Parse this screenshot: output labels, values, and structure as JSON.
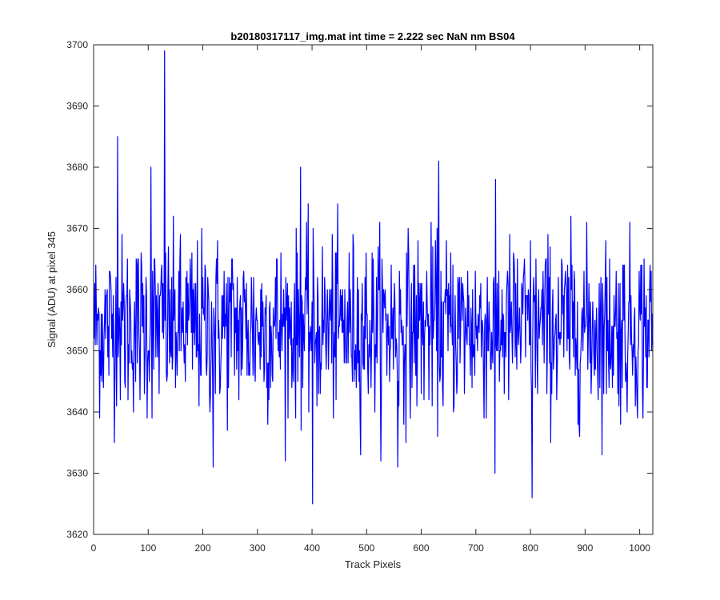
{
  "chart_data": {
    "type": "line",
    "title": "b20180317117_img.mat int time = 2.222 sec  NaN nm BS04",
    "xlabel": "Track Pixels",
    "ylabel": "Signal (ADU) at pixel 345",
    "xlim": [
      0,
      1024
    ],
    "ylim": [
      3620,
      3700
    ],
    "xticks": [
      0,
      100,
      200,
      300,
      400,
      500,
      600,
      700,
      800,
      900,
      1000
    ],
    "yticks": [
      3620,
      3630,
      3640,
      3650,
      3660,
      3670,
      3680,
      3690,
      3700
    ],
    "grid": false,
    "line_color": "#0000ff",
    "series": [
      {
        "x_start": 1,
        "x_step": 1,
        "num_points": 1024,
        "mean": 3654,
        "min": 3625,
        "max": 3699,
        "values": []
      }
    ],
    "extremes": [
      {
        "x": 130,
        "y": 3699
      },
      {
        "x": 44,
        "y": 3685
      },
      {
        "x": 105,
        "y": 3680
      },
      {
        "x": 379,
        "y": 3680
      },
      {
        "x": 632,
        "y": 3681
      },
      {
        "x": 219,
        "y": 3631
      },
      {
        "x": 401,
        "y": 3625
      },
      {
        "x": 803,
        "y": 3626
      },
      {
        "x": 735,
        "y": 3630
      },
      {
        "x": 557,
        "y": 3631
      }
    ]
  }
}
